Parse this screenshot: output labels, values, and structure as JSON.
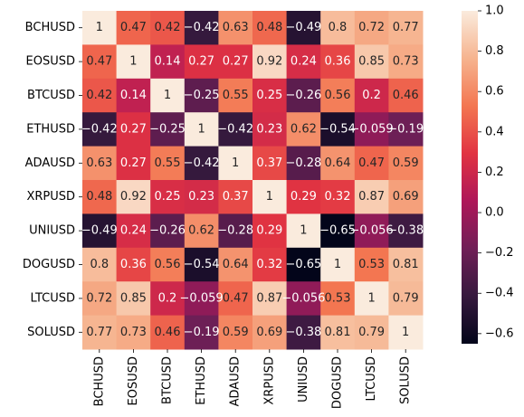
{
  "chart_data": {
    "type": "heatmap",
    "title": "",
    "xlabel": "",
    "ylabel": "",
    "rows": [
      "BCHUSD",
      "EOSUSD",
      "BTCUSD",
      "ETHUSD",
      "ADAUSD",
      "XRPUSD",
      "UNIUSD",
      "DOGUSD",
      "LTCUSD",
      "SOLUSD"
    ],
    "columns": [
      "BCHUSD",
      "EOSUSD",
      "BTCUSD",
      "ETHUSD",
      "ADAUSD",
      "XRPUSD",
      "UNIUSD",
      "DOGUSD",
      "LTCUSD",
      "SOLUSD"
    ],
    "values": [
      [
        1,
        0.47,
        0.42,
        -0.42,
        0.63,
        0.48,
        -0.49,
        0.8,
        0.72,
        0.77
      ],
      [
        0.47,
        1,
        0.14,
        0.27,
        0.27,
        0.92,
        0.24,
        0.36,
        0.85,
        0.73
      ],
      [
        0.42,
        0.14,
        1,
        -0.25,
        0.55,
        0.25,
        -0.26,
        0.56,
        0.2,
        0.46
      ],
      [
        -0.42,
        0.27,
        -0.25,
        1,
        -0.42,
        0.23,
        0.62,
        -0.54,
        -0.059,
        -0.19
      ],
      [
        0.63,
        0.27,
        0.55,
        -0.42,
        1,
        0.37,
        -0.28,
        0.64,
        0.47,
        0.59
      ],
      [
        0.48,
        0.92,
        0.25,
        0.23,
        0.37,
        1,
        0.29,
        0.32,
        0.87,
        0.69
      ],
      [
        -0.49,
        0.24,
        -0.26,
        0.62,
        -0.28,
        0.29,
        1,
        -0.65,
        -0.056,
        -0.38
      ],
      [
        0.8,
        0.36,
        0.56,
        -0.54,
        0.64,
        0.32,
        -0.65,
        1,
        0.53,
        0.81
      ],
      [
        0.72,
        0.85,
        0.2,
        -0.059,
        0.47,
        0.87,
        -0.056,
        0.53,
        1,
        0.79
      ],
      [
        0.77,
        0.73,
        0.46,
        -0.19,
        0.59,
        0.69,
        -0.38,
        0.81,
        0.79,
        1
      ]
    ],
    "colorbar": {
      "min": -0.65,
      "max": 1.0,
      "ticks": [
        1.0,
        0.8,
        0.6,
        0.4,
        0.2,
        0.0,
        -0.2,
        -0.4,
        -0.6
      ],
      "tick_labels": [
        "1.0",
        "0.8",
        "0.6",
        "0.4",
        "0.2",
        "0.0",
        "−0.2",
        "−0.4",
        "−0.6"
      ]
    },
    "colormap": "rocket",
    "colormap_stops": [
      "#03051a",
      "#36193e",
      "#701f57",
      "#ae1759",
      "#e13342",
      "#f37651",
      "#f6b48f",
      "#faebdd"
    ],
    "annotations": true,
    "grid": false,
    "legend": "colorbar-right"
  }
}
